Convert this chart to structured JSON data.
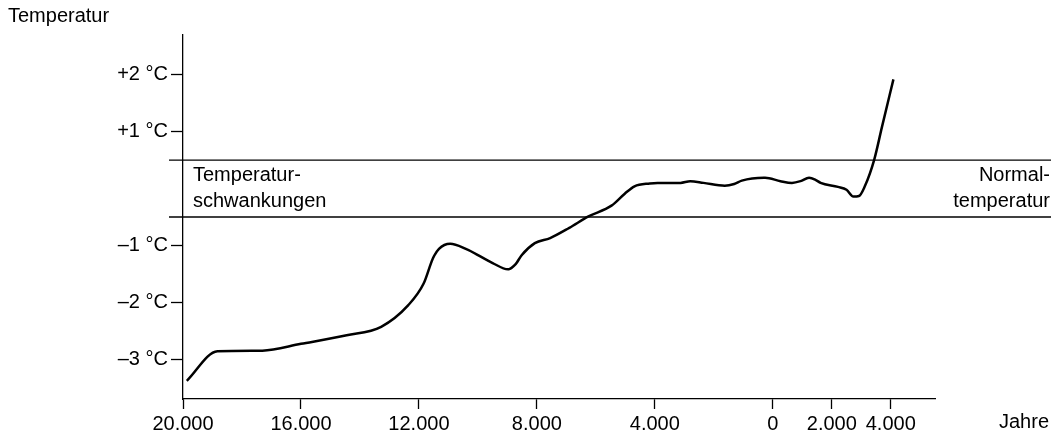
{
  "chart_data": {
    "type": "line",
    "ylabel": "Temperatur",
    "xlabel": "Jahre",
    "x": [
      -19870,
      -18830,
      -17310,
      -16000,
      -14450,
      -13280,
      -12360,
      -11840,
      -11520,
      -11320,
      -10940,
      -10410,
      -9500,
      -8980,
      -8720,
      -8530,
      -8070,
      -7550,
      -6900,
      -6250,
      -5470,
      -5020,
      -4690,
      -4170,
      -3910,
      -3130,
      -2800,
      -2350,
      -1630,
      -1310,
      -1050,
      -260,
      260,
      650,
      940,
      1230,
      1460,
      1620,
      2210,
      2500,
      2730,
      2920,
      3120,
      3440,
      3700,
      4090
    ],
    "series": [
      {
        "color": "#000000",
        "values": [
          -3.38,
          -2.86,
          -2.85,
          -2.73,
          -2.58,
          -2.43,
          -2.05,
          -1.67,
          -1.22,
          -1.06,
          -0.97,
          -1.06,
          -1.31,
          -1.42,
          -1.33,
          -1.18,
          -0.96,
          -0.87,
          -0.69,
          -0.49,
          -0.3,
          -0.09,
          0.04,
          0.09,
          0.1,
          0.1,
          0.13,
          0.1,
          0.05,
          0.08,
          0.14,
          0.19,
          0.13,
          0.1,
          0.13,
          0.19,
          0.15,
          0.1,
          0.03,
          -0.02,
          -0.14,
          -0.13,
          0.04,
          0.51,
          1.08,
          1.92
        ]
      }
    ],
    "xlim": [
      -20000,
      5500
    ],
    "xticks": [
      {
        "value": -20000,
        "label": "20.000"
      },
      {
        "value": -16000,
        "label": "16.000"
      },
      {
        "value": -12000,
        "label": "12.000"
      },
      {
        "value": -8000,
        "label": "8.000"
      },
      {
        "value": -4000,
        "label": "4.000"
      },
      0,
      {
        "value": 2000,
        "label": "2.000"
      },
      {
        "value": 4000,
        "label": "4.000"
      }
    ],
    "ylim": [
      -3.7,
      2.7
    ],
    "yticks": [
      {
        "value": -3,
        "label": "–3 °C"
      },
      {
        "value": -2,
        "label": "–2 °C"
      },
      {
        "value": -1,
        "label": "–1 °C"
      },
      {
        "value": 1,
        "label": "+1 °C"
      },
      {
        "value": 2,
        "label": "+2 °C"
      }
    ],
    "ref_lines": [
      {
        "axis": "y",
        "value": 0.5
      },
      {
        "axis": "y",
        "value": -0.5
      }
    ],
    "annotations": [
      "Temperatur-\nschwankungen",
      "Normal-\ntemperatur"
    ]
  }
}
